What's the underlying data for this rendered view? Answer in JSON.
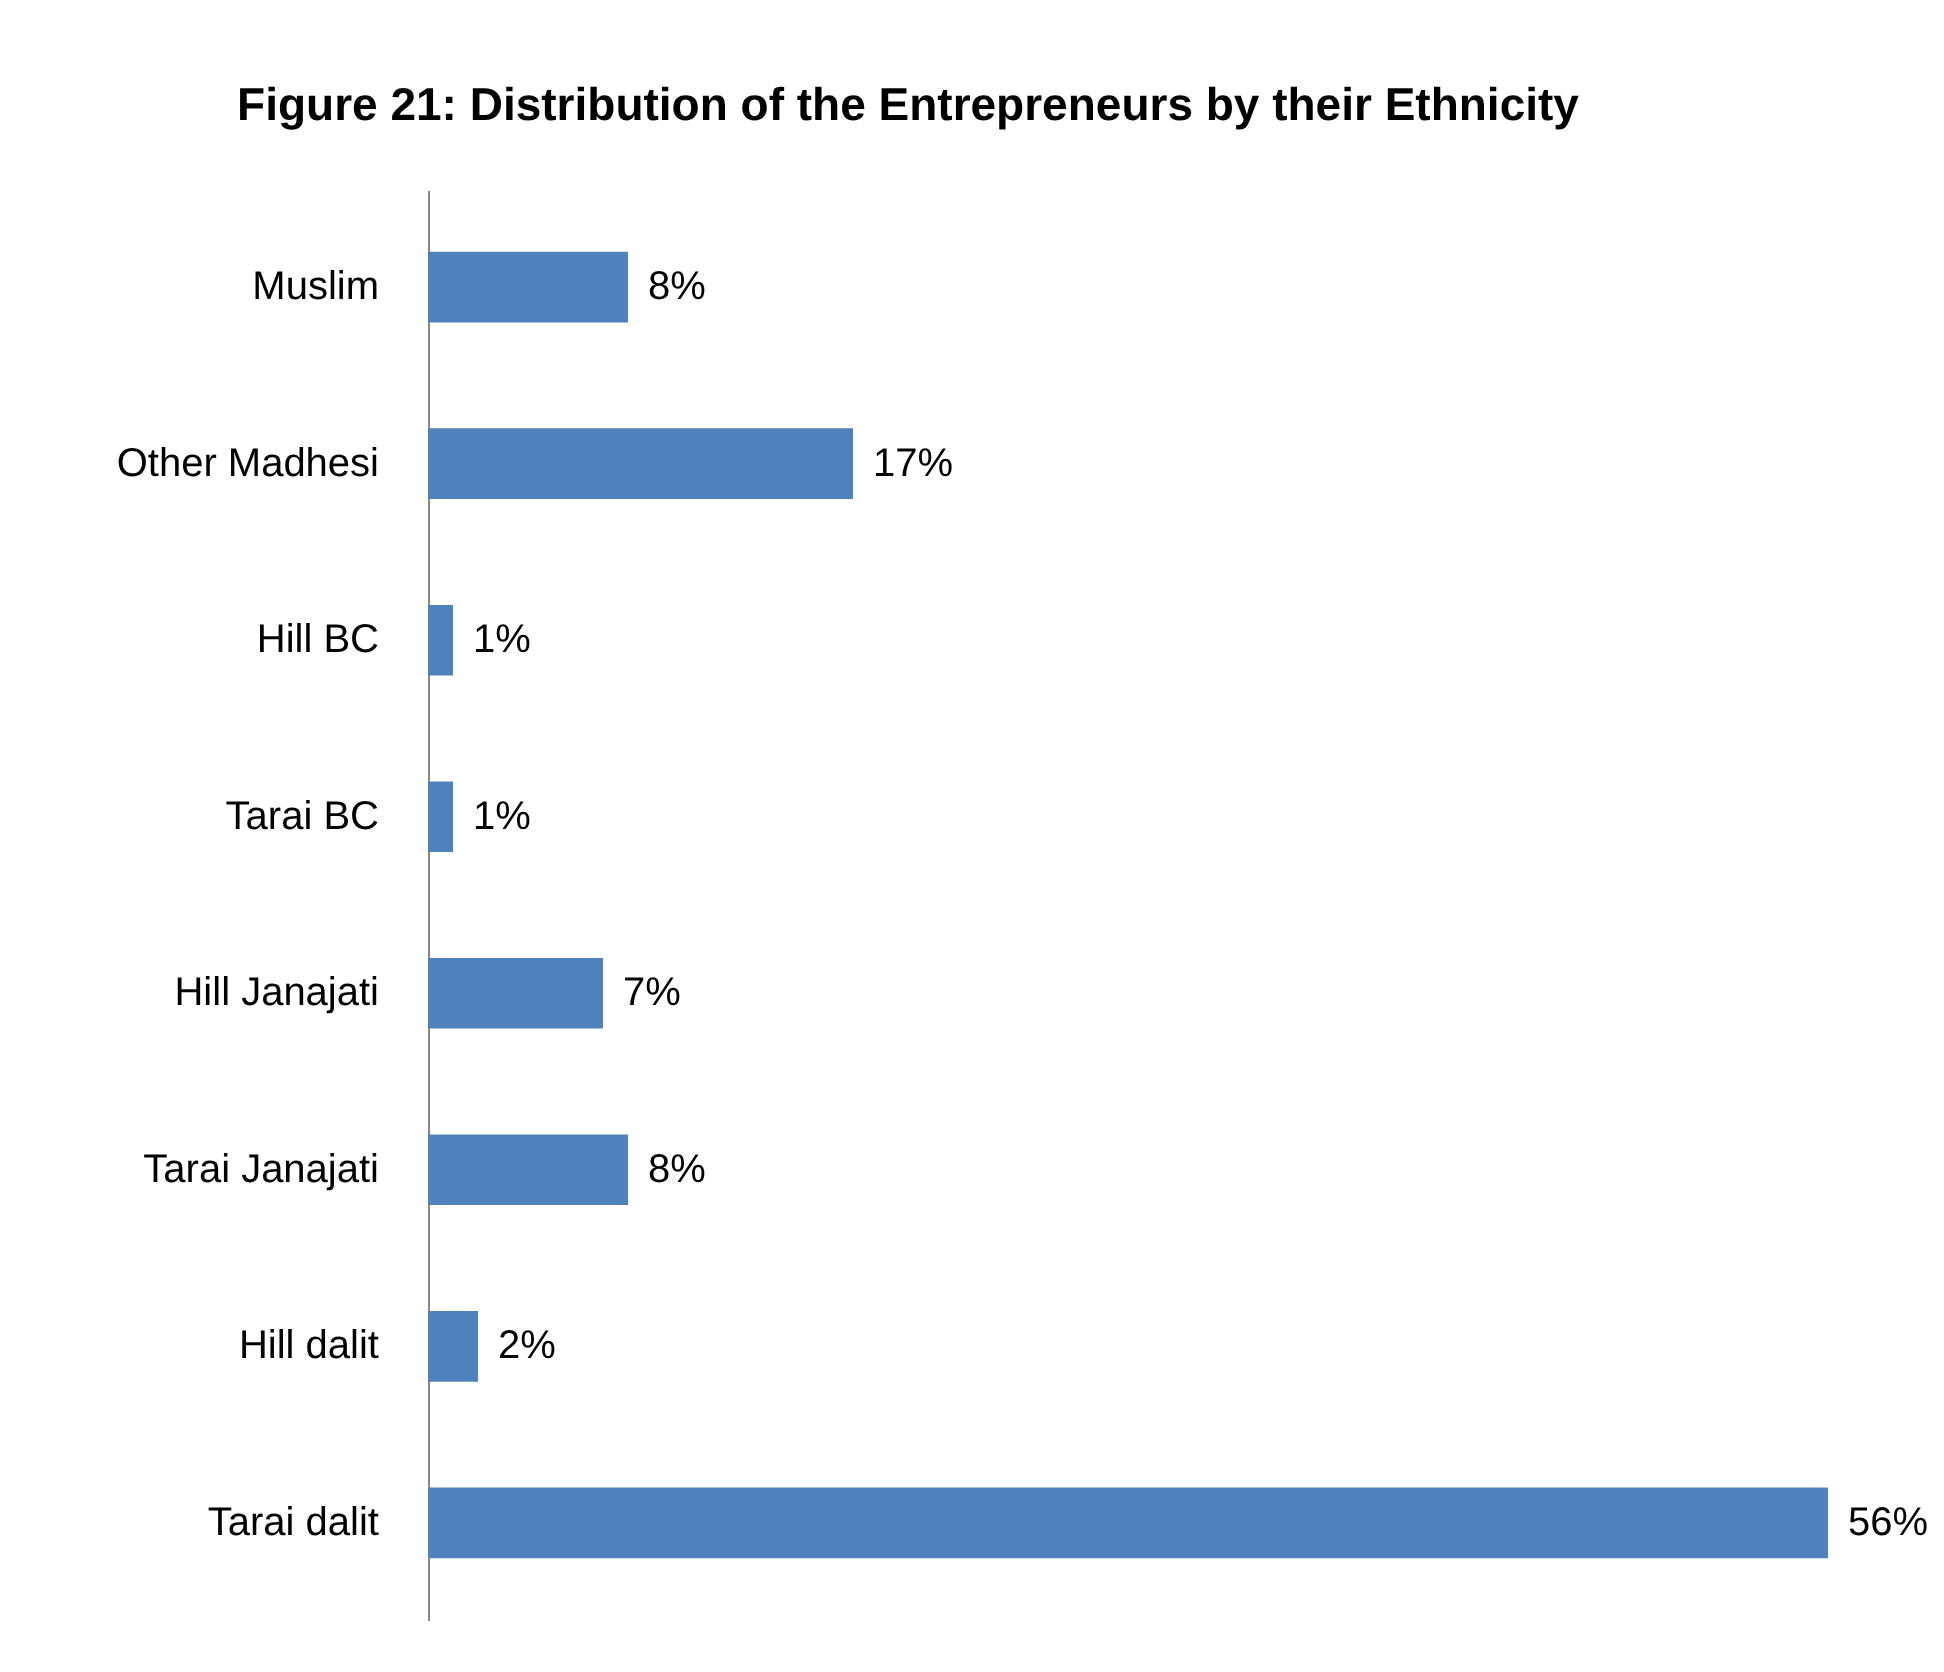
{
  "chart_data": {
    "type": "bar",
    "orientation": "horizontal",
    "title": "Figure 21: Distribution of the Entrepreneurs by their Ethnicity",
    "categories": [
      "Muslim",
      "Other Madhesi",
      "Hill BC",
      "Tarai BC",
      "Hill Janajati",
      "Tarai Janajati",
      "Hill dalit",
      "Tarai dalit"
    ],
    "values": [
      8,
      17,
      1,
      1,
      7,
      8,
      2,
      56
    ],
    "value_labels": [
      "8%",
      "17%",
      "1%",
      "1%",
      "7%",
      "8%",
      "2%",
      "56%"
    ],
    "color": "#4f81bd"
  }
}
